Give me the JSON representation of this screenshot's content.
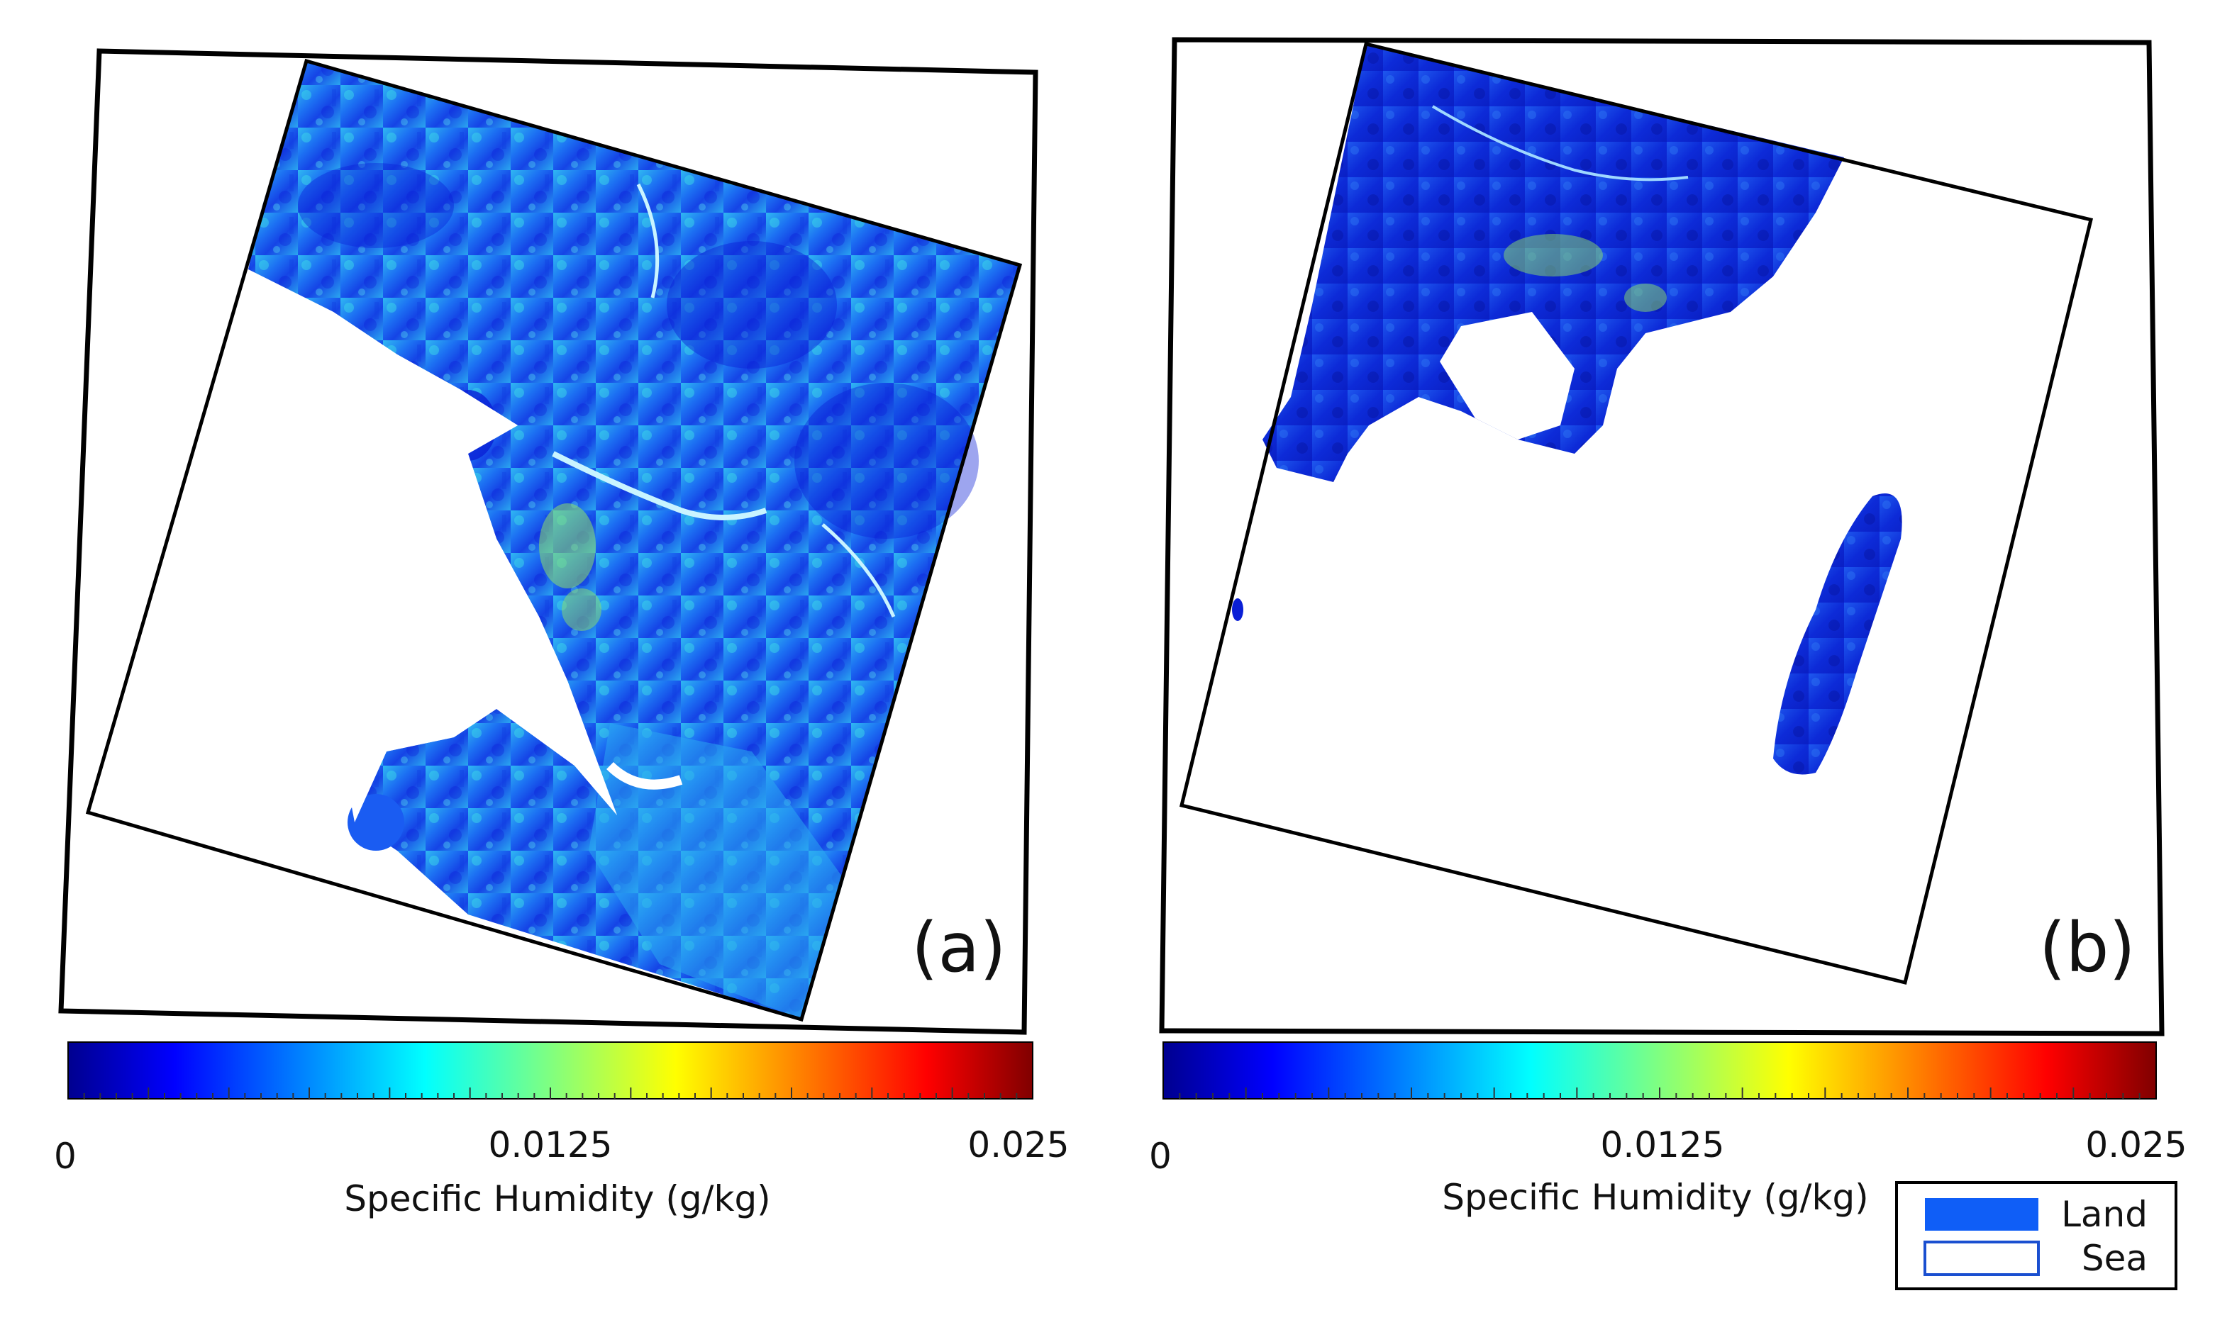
{
  "panels": [
    {
      "id": "a",
      "label": "(a)"
    },
    {
      "id": "b",
      "label": "(b)"
    }
  ],
  "colorbar": {
    "min_label": "0",
    "mid_label": "0.0125",
    "max_label": "0.025",
    "title": "Specific Humidity (g/kg)",
    "range": [
      0,
      0.025
    ],
    "colormap": "jet",
    "stops": [
      "#00008f",
      "#0000ff",
      "#0080ff",
      "#00ffff",
      "#80ff80",
      "#ffff00",
      "#ff8000",
      "#ff0000",
      "#800000"
    ]
  },
  "legend": {
    "items": [
      {
        "label": "Land",
        "color": "#0f5ef7"
      },
      {
        "label": "Sea",
        "color": "#ffffff"
      }
    ]
  },
  "colors": {
    "land_dark": "#0a1fd6",
    "land_mid": "#1a5cf2",
    "land_light": "#2aa8f0",
    "land_cyan": "#3fe0e8",
    "land_green": "#8ee06a",
    "frame": "#000000"
  }
}
